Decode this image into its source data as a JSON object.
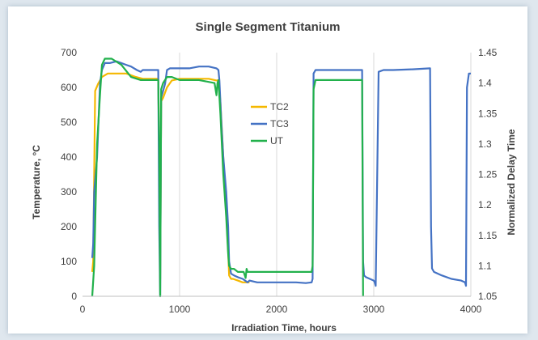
{
  "chart_data": {
    "type": "line",
    "title": "Single Segment Titanium",
    "xlabel": "Irradiation Time, hours",
    "ylabel": "Temperature, °C",
    "y2label": "Normalized Delay Time",
    "xlim": [
      0,
      4000
    ],
    "ylim": [
      0,
      700
    ],
    "y2lim": [
      1.05,
      1.45
    ],
    "xticks": [
      "0",
      "1000",
      "2000",
      "3000",
      "4000"
    ],
    "yticks": [
      "0",
      "100",
      "200",
      "300",
      "400",
      "500",
      "600",
      "700"
    ],
    "y2ticks": [
      "1.05",
      "1.1",
      "1.15",
      "1.2",
      "1.25",
      "1.3",
      "1.35",
      "1.4",
      "1.45"
    ],
    "grid": "vertical",
    "legend_position": "center",
    "series": [
      {
        "name": "TC2",
        "color": "#f5b800",
        "axis": "left",
        "x": [
          100,
          110,
          130,
          160,
          200,
          260,
          350,
          450,
          550,
          620,
          700,
          780,
          790,
          800,
          810,
          830,
          870,
          920,
          1000,
          1100,
          1200,
          1300,
          1380,
          1400,
          1420,
          1480,
          1500,
          1510,
          1530,
          1550,
          1600,
          1650,
          1700,
          1720
        ],
        "y": [
          70,
          100,
          590,
          610,
          630,
          640,
          640,
          640,
          630,
          625,
          625,
          625,
          400,
          50,
          560,
          570,
          600,
          620,
          625,
          625,
          625,
          625,
          620,
          620,
          560,
          240,
          130,
          60,
          50,
          50,
          45,
          40,
          40,
          40
        ]
      },
      {
        "name": "TC3",
        "color": "#4472c4",
        "axis": "left",
        "x": [
          100,
          110,
          120,
          150,
          180,
          200,
          230,
          280,
          350,
          400,
          450,
          500,
          560,
          600,
          620,
          700,
          780,
          790,
          800,
          810,
          830,
          850,
          870,
          900,
          1000,
          1100,
          1200,
          1300,
          1380,
          1400,
          1410,
          1430,
          1450,
          1480,
          1500,
          1510,
          1530,
          1560,
          1600,
          1650,
          1700,
          1720,
          1800,
          2000,
          2200,
          2300,
          2360,
          2370,
          2380,
          2400,
          2600,
          2800,
          2880,
          2890,
          2900,
          2920,
          2960,
          3000,
          3010,
          3020,
          3050,
          3100,
          3200,
          3400,
          3580,
          3590,
          3600,
          3620,
          3700,
          3800,
          3900,
          3940,
          3950,
          3960,
          3980,
          4000
        ],
        "y": [
          110,
          150,
          300,
          400,
          610,
          650,
          670,
          670,
          675,
          670,
          665,
          660,
          650,
          645,
          650,
          650,
          650,
          200,
          0,
          570,
          590,
          610,
          650,
          655,
          655,
          655,
          660,
          660,
          655,
          650,
          620,
          500,
          400,
          300,
          200,
          100,
          65,
          60,
          55,
          50,
          40,
          45,
          40,
          40,
          40,
          38,
          40,
          50,
          640,
          650,
          650,
          650,
          650,
          100,
          60,
          55,
          50,
          45,
          40,
          30,
          645,
          650,
          650,
          652,
          655,
          200,
          80,
          70,
          60,
          50,
          45,
          40,
          30,
          600,
          640,
          640
        ]
      },
      {
        "name": "UT",
        "color": "#22b14c",
        "axis": "right",
        "x": [
          100,
          120,
          150,
          180,
          200,
          230,
          300,
          400,
          500,
          600,
          700,
          780,
          790,
          800,
          810,
          830,
          870,
          920,
          1000,
          1200,
          1360,
          1380,
          1390,
          1400,
          1420,
          1450,
          1480,
          1500,
          1510,
          1530,
          1560,
          1600,
          1660,
          1680,
          1690,
          1700,
          1720,
          1760,
          1800,
          2000,
          2200,
          2360,
          2370,
          2380,
          2400,
          2600,
          2800,
          2880,
          2890
        ],
        "y": [
          1.05,
          1.1,
          1.3,
          1.38,
          1.43,
          1.44,
          1.44,
          1.43,
          1.41,
          1.405,
          1.405,
          1.405,
          1.3,
          1.05,
          1.39,
          1.4,
          1.41,
          1.41,
          1.405,
          1.405,
          1.4,
          1.38,
          1.4,
          1.405,
          1.35,
          1.25,
          1.18,
          1.12,
          1.1,
          1.095,
          1.095,
          1.09,
          1.09,
          1.08,
          1.095,
          1.09,
          1.09,
          1.09,
          1.09,
          1.09,
          1.09,
          1.09,
          1.1,
          1.39,
          1.405,
          1.405,
          1.405,
          1.405,
          1.05
        ]
      }
    ]
  }
}
